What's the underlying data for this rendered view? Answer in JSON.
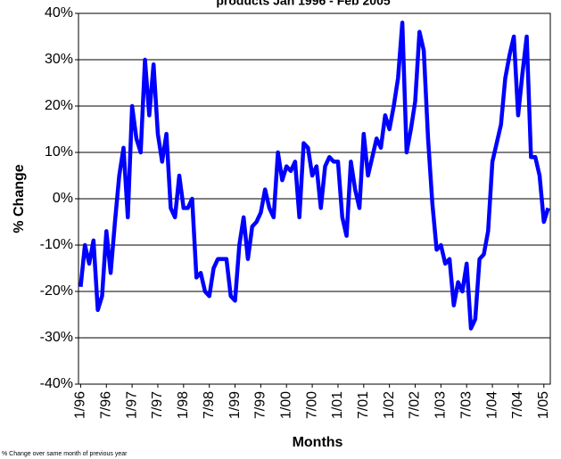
{
  "chart_data": {
    "type": "line",
    "title": "products Jan 1996 - Feb 2005",
    "y_label": "% Change",
    "x_label": "Months",
    "note": "% Change over same month of previous year",
    "categories": [
      "1/96",
      null,
      null,
      null,
      null,
      null,
      "7/96",
      null,
      null,
      null,
      null,
      null,
      "1/97",
      null,
      null,
      null,
      null,
      null,
      "7/97",
      null,
      null,
      null,
      null,
      null,
      "1/98",
      null,
      null,
      null,
      null,
      null,
      "7/98",
      null,
      null,
      null,
      null,
      null,
      "1/99",
      null,
      null,
      null,
      null,
      null,
      "7/99",
      null,
      null,
      null,
      null,
      null,
      "1/00",
      null,
      null,
      null,
      null,
      null,
      "7/00",
      null,
      null,
      null,
      null,
      null,
      "1/01",
      null,
      null,
      null,
      null,
      null,
      "7/01",
      null,
      null,
      null,
      null,
      null,
      "1/02",
      null,
      null,
      null,
      null,
      null,
      "7/02",
      null,
      null,
      null,
      null,
      null,
      "1/03",
      null,
      null,
      null,
      null,
      null,
      "7/03",
      null,
      null,
      null,
      null,
      null,
      "1/04",
      null,
      null,
      null,
      null,
      null,
      "7/04",
      null,
      null,
      null,
      null,
      null,
      "1/05",
      null
    ],
    "series": [
      {
        "color": "#0000ff",
        "values": [
          -19,
          -10,
          -14,
          -9,
          -24,
          -21,
          -7,
          -16,
          -5,
          5,
          11,
          -4,
          20,
          13,
          10,
          30,
          18,
          29,
          14,
          8,
          14,
          -2,
          -4,
          5,
          -2,
          -2,
          0,
          -17,
          -16,
          -20,
          -21,
          -15,
          -13,
          -13,
          -13,
          -21,
          -22,
          -10,
          -4,
          -13,
          -6,
          -5,
          -3,
          2,
          -2,
          -4,
          10,
          4,
          7,
          6,
          8,
          -4,
          12,
          11,
          5,
          7,
          -2,
          7,
          9,
          8,
          8,
          -4,
          -8,
          8,
          2,
          -2,
          14,
          5,
          9,
          13,
          11,
          18,
          15,
          20,
          26,
          38,
          10,
          15,
          21,
          36,
          32,
          13,
          -1,
          -11,
          -10,
          -14,
          -13,
          -23,
          -18,
          -20,
          -14,
          -28,
          -26,
          -13,
          -12,
          -7,
          8,
          12,
          16,
          26,
          31,
          35,
          18,
          27,
          35,
          9,
          9,
          5,
          -5,
          -2
        ]
      }
    ],
    "ylim": [
      -40,
      40
    ],
    "yticks": [
      {
        "value": -40,
        "label": "-40%"
      },
      {
        "value": -30,
        "label": "-30%"
      },
      {
        "value": -20,
        "label": "-20%"
      },
      {
        "value": -10,
        "label": "-10%"
      },
      {
        "value": 0,
        "label": "0%"
      },
      {
        "value": 10,
        "label": "10%"
      },
      {
        "value": 20,
        "label": "20%"
      },
      {
        "value": 30,
        "label": "30%"
      },
      {
        "value": 40,
        "label": "40%"
      }
    ],
    "grid": true
  }
}
